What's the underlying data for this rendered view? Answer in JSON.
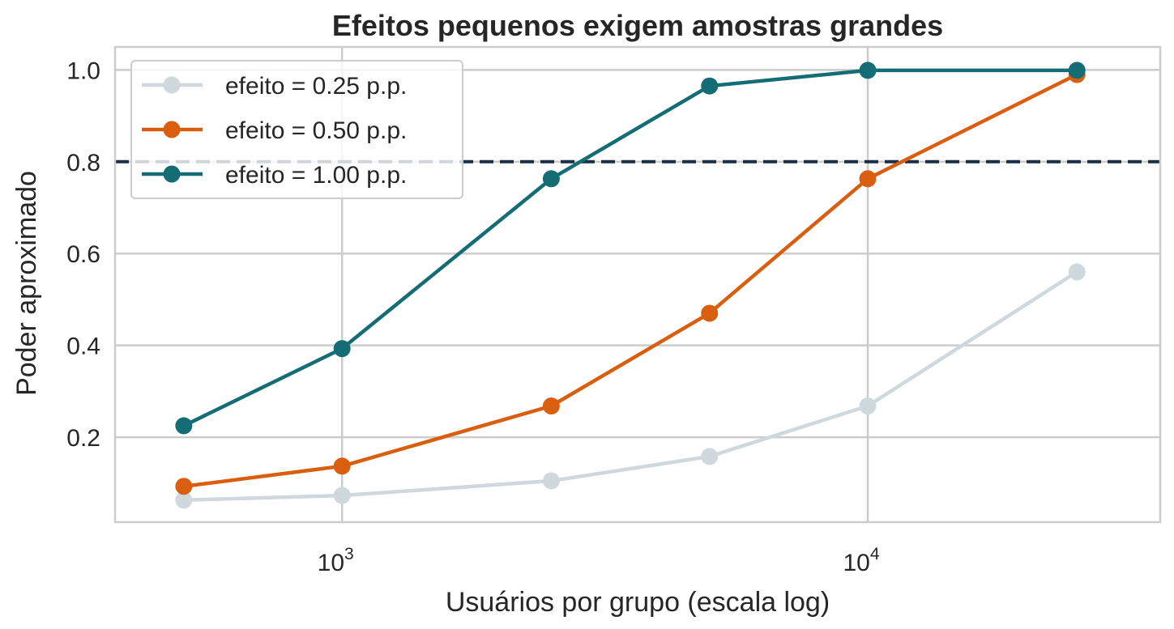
{
  "chart_data": {
    "type": "line",
    "title": "Efeitos pequenos exigem amostras grandes",
    "xlabel": "Usuários por grupo (escala log)",
    "ylabel": "Poder aproximado",
    "xscale": "log",
    "xlim": [
      370,
      36000
    ],
    "ylim": [
      0.015,
      1.05
    ],
    "x": [
      500,
      1000,
      2500,
      5000,
      10000,
      25000
    ],
    "x_ticks": [
      {
        "value": 1000,
        "base": "10",
        "exp": "3"
      },
      {
        "value": 10000,
        "base": "10",
        "exp": "4"
      }
    ],
    "y_ticks": [
      {
        "value": 0.2,
        "label": "0.2"
      },
      {
        "value": 0.4,
        "label": "0.4"
      },
      {
        "value": 0.6,
        "label": "0.6"
      },
      {
        "value": 0.8,
        "label": "0.8"
      },
      {
        "value": 1.0,
        "label": "1.0"
      }
    ],
    "series": [
      {
        "name": "efeito = 0.25 p.p.",
        "color": "#cfd8dc",
        "values": [
          0.063,
          0.073,
          0.105,
          0.158,
          0.268,
          0.56
        ]
      },
      {
        "name": "efeito = 0.50 p.p.",
        "color": "#d95f0e",
        "values": [
          0.093,
          0.137,
          0.268,
          0.47,
          0.763,
          0.99
        ]
      },
      {
        "name": "efeito = 1.00 p.p.",
        "color": "#146c75",
        "values": [
          0.225,
          0.393,
          0.763,
          0.965,
          0.999,
          0.999
        ]
      }
    ],
    "reference_line": {
      "y": 0.8,
      "color": "#1b2f45",
      "style": "dashed"
    },
    "grid": true,
    "legend_position": "top-left"
  }
}
